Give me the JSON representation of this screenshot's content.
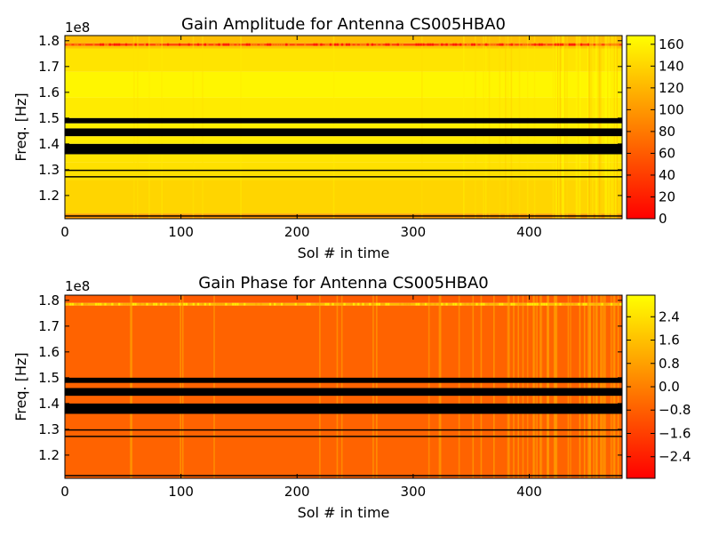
{
  "chart_data": [
    {
      "type": "heatmap",
      "title": "Gain Amplitude for Antenna CS005HBA0",
      "xlabel": "Sol # in time",
      "ylabel": "Freq. [Hz]",
      "y_offset_label": "1e8",
      "xlim": [
        0,
        480
      ],
      "ylim": [
        1.11,
        1.82
      ],
      "x_ticks": [
        "0",
        "100",
        "200",
        "300",
        "400"
      ],
      "x_tick_values": [
        0,
        100,
        200,
        300,
        400
      ],
      "y_ticks": [
        "1.2",
        "1.3",
        "1.4",
        "1.5",
        "1.6",
        "1.7",
        "1.8"
      ],
      "y_tick_values": [
        1.2,
        1.3,
        1.4,
        1.5,
        1.6,
        1.7,
        1.8
      ],
      "colormap": "autumn",
      "colorbar": {
        "range": [
          0,
          168
        ],
        "ticks": [
          "0",
          "20",
          "40",
          "60",
          "80",
          "100",
          "120",
          "140",
          "160"
        ],
        "tick_values": [
          0,
          20,
          40,
          60,
          80,
          100,
          120,
          140,
          160
        ],
        "color_low": "#ff0000",
        "color_high": "#ffff00"
      },
      "flagged_bands": [
        [
          1.48,
          1.5
        ],
        [
          1.43,
          1.46
        ],
        [
          1.36,
          1.4
        ],
        [
          1.295,
          1.3
        ],
        [
          1.27,
          1.275
        ],
        [
          1.118,
          1.123
        ]
      ],
      "profile": [
        {
          "f0": 1.11,
          "f1": 1.13,
          "value": 100
        },
        {
          "f0": 1.13,
          "f1": 1.26,
          "value": 140
        },
        {
          "f0": 1.26,
          "f1": 1.33,
          "value": 148
        },
        {
          "f0": 1.33,
          "f1": 1.36,
          "value": 150
        },
        {
          "f0": 1.4,
          "f1": 1.43,
          "value": 155
        },
        {
          "f0": 1.46,
          "f1": 1.48,
          "value": 158
        },
        {
          "f0": 1.5,
          "f1": 1.58,
          "value": 155
        },
        {
          "f0": 1.58,
          "f1": 1.68,
          "value": 162
        },
        {
          "f0": 1.68,
          "f1": 1.77,
          "value": 150
        },
        {
          "f0": 1.77,
          "f1": 1.78,
          "value": 130
        },
        {
          "f0": 1.78,
          "f1": 1.79,
          "value": 50
        },
        {
          "f0": 1.79,
          "f1": 1.82,
          "value": 125
        }
      ]
    },
    {
      "type": "heatmap",
      "title": "Gain Phase for Antenna CS005HBA0",
      "xlabel": "Sol # in time",
      "ylabel": "Freq. [Hz]",
      "y_offset_label": "1e8",
      "xlim": [
        0,
        480
      ],
      "ylim": [
        1.11,
        1.82
      ],
      "x_ticks": [
        "0",
        "100",
        "200",
        "300",
        "400"
      ],
      "x_tick_values": [
        0,
        100,
        200,
        300,
        400
      ],
      "y_ticks": [
        "1.2",
        "1.3",
        "1.4",
        "1.5",
        "1.6",
        "1.7",
        "1.8"
      ],
      "y_tick_values": [
        1.2,
        1.3,
        1.4,
        1.5,
        1.6,
        1.7,
        1.8
      ],
      "colormap": "autumn",
      "colorbar": {
        "range": [
          -3.14,
          3.14
        ],
        "ticks": [
          "−2.4",
          "−1.6",
          "−0.8",
          "0.0",
          "0.8",
          "1.6",
          "2.4"
        ],
        "tick_values": [
          -2.4,
          -1.6,
          -0.8,
          0.0,
          0.8,
          1.6,
          2.4
        ],
        "color_low": "#ff0000",
        "color_high": "#ffff00"
      },
      "flagged_bands": [
        [
          1.48,
          1.5
        ],
        [
          1.43,
          1.46
        ],
        [
          1.36,
          1.4
        ],
        [
          1.295,
          1.3
        ],
        [
          1.27,
          1.275
        ],
        [
          1.118,
          1.123
        ]
      ],
      "profile": [
        {
          "f0": 1.11,
          "f1": 1.78,
          "value": -0.7
        },
        {
          "f0": 1.78,
          "f1": 1.79,
          "value": 1.5
        },
        {
          "f0": 1.79,
          "f1": 1.82,
          "value": -0.9
        }
      ]
    }
  ]
}
